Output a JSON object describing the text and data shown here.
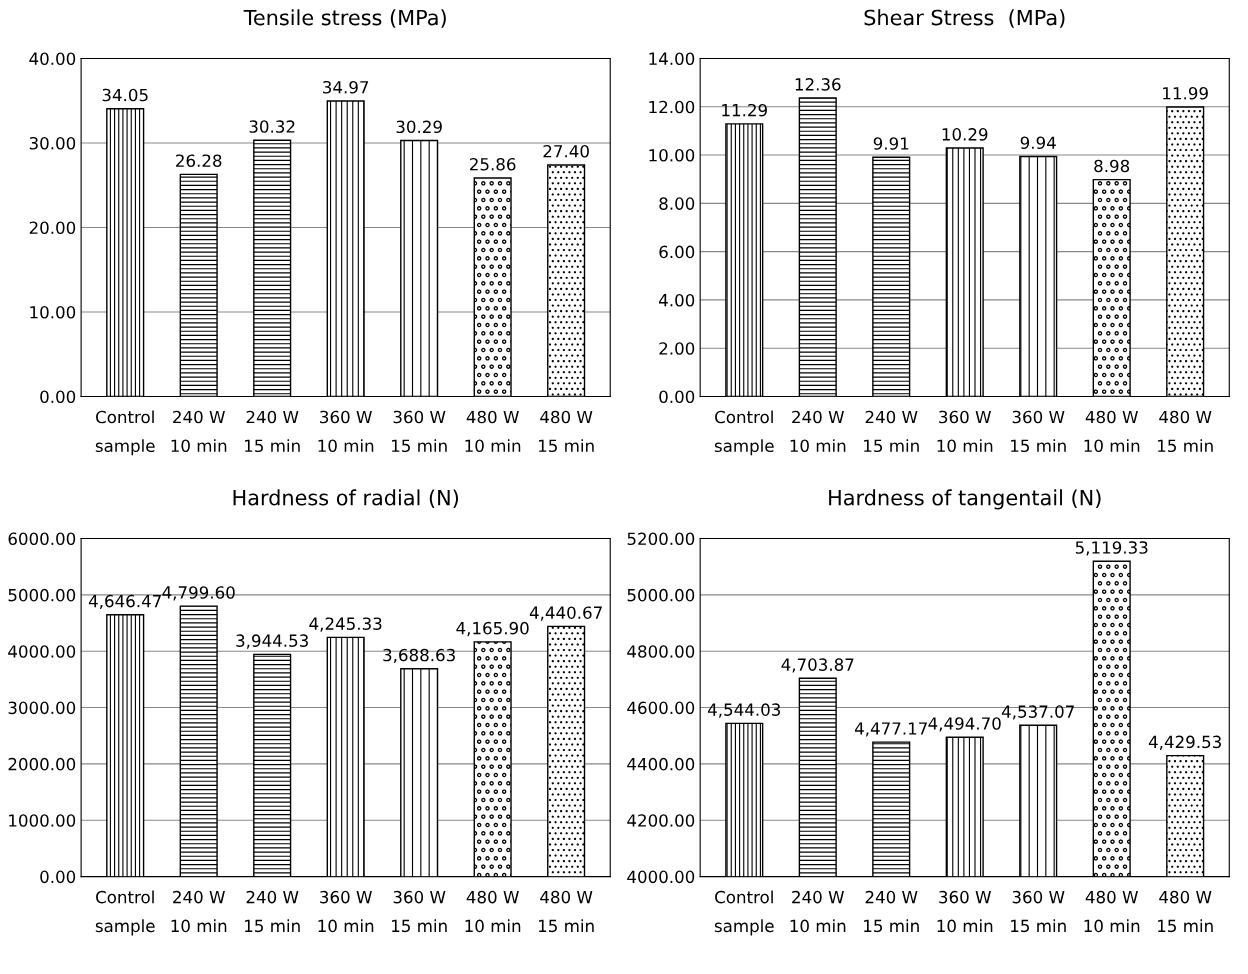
{
  "chart_data": [
    {
      "type": "bar",
      "title": "Tensile stress (MPa)",
      "categories": [
        "Control\nsample",
        "240 W\n10 min",
        "240 W\n15 min",
        "360 W\n10 min",
        "360 W\n15 min",
        "480 W\n10 min",
        "480 W\n15 min"
      ],
      "values": [
        34.05,
        26.28,
        30.32,
        34.97,
        30.29,
        25.86,
        27.4
      ],
      "value_labels": [
        "34.05",
        "26.28",
        "30.32",
        "34.97",
        "30.29",
        "25.86",
        "27.40"
      ],
      "color": "#000000",
      "ylim": [
        0,
        40
      ],
      "yticks": [
        {
          "value": 0,
          "label": "0.00"
        },
        {
          "value": 10,
          "label": "10.00"
        },
        {
          "value": 20,
          "label": "20.00"
        },
        {
          "value": 30,
          "label": "30.00"
        },
        {
          "value": 40,
          "label": "40.00"
        }
      ],
      "grid": "y",
      "legend": false
    },
    {
      "type": "bar",
      "title": "Shear Stress  (MPa)",
      "categories": [
        "Control\nsample",
        "240 W\n10 min",
        "240 W\n15 min",
        "360 W\n10 min",
        "360 W\n15 min",
        "480 W\n10 min",
        "480 W\n15 min"
      ],
      "values": [
        11.29,
        12.36,
        9.91,
        10.29,
        9.94,
        8.98,
        11.99
      ],
      "value_labels": [
        "11.29",
        "12.36",
        "9.91",
        "10.29",
        "9.94",
        "8.98",
        "11.99"
      ],
      "color": "#000000",
      "ylim": [
        0,
        14
      ],
      "yticks": [
        {
          "value": 0,
          "label": "0.00"
        },
        {
          "value": 2,
          "label": "2.00"
        },
        {
          "value": 4,
          "label": "4.00"
        },
        {
          "value": 6,
          "label": "6.00"
        },
        {
          "value": 8,
          "label": "8.00"
        },
        {
          "value": 10,
          "label": "10.00"
        },
        {
          "value": 12,
          "label": "12.00"
        },
        {
          "value": 14,
          "label": "14.00"
        }
      ],
      "grid": "y",
      "legend": false
    },
    {
      "type": "bar",
      "title": "Hardness of radial (N)",
      "categories": [
        "Control\nsample",
        "240 W\n10 min",
        "240 W\n15 min",
        "360 W\n10 min",
        "360 W\n15 min",
        "480 W\n10 min",
        "480 W\n15 min"
      ],
      "values": [
        4646.47,
        4799.6,
        3944.53,
        4245.33,
        3688.63,
        4165.9,
        4440.67
      ],
      "value_labels": [
        "4,646.47",
        "4,799.60",
        "3,944.53",
        "4,245.33",
        "3,688.63",
        "4,165.90",
        "4,440.67"
      ],
      "color": "#000000",
      "ylim": [
        0,
        6000
      ],
      "yticks": [
        {
          "value": 0,
          "label": "0.00"
        },
        {
          "value": 1000,
          "label": "1000.00"
        },
        {
          "value": 2000,
          "label": "2000.00"
        },
        {
          "value": 3000,
          "label": "3000.00"
        },
        {
          "value": 4000,
          "label": "4000.00"
        },
        {
          "value": 5000,
          "label": "5000.00"
        },
        {
          "value": 6000,
          "label": "6000.00"
        }
      ],
      "grid": "y",
      "legend": false
    },
    {
      "type": "bar",
      "title": "Hardness of tangentail (N)",
      "categories": [
        "Control\nsample",
        "240 W\n10 min",
        "240 W\n15 min",
        "360 W\n10 min",
        "360 W\n15 min",
        "480 W\n10 min",
        "480 W\n15 min"
      ],
      "values": [
        4544.03,
        4703.87,
        4477.17,
        4494.7,
        4537.07,
        5119.33,
        4429.53
      ],
      "value_labels": [
        "4,544.03",
        "4,703.87",
        "4,477.17",
        "4,494.70",
        "4,537.07",
        "5,119.33",
        "4,429.53"
      ],
      "color": "#000000",
      "ylim": [
        4000,
        5200
      ],
      "yticks": [
        {
          "value": 4000,
          "label": "4000.00"
        },
        {
          "value": 4200,
          "label": "4200.00"
        },
        {
          "value": 4400,
          "label": "4400.00"
        },
        {
          "value": 4600,
          "label": "4600.00"
        },
        {
          "value": 4800,
          "label": "4800.00"
        },
        {
          "value": 5000,
          "label": "5000.00"
        },
        {
          "value": 5200,
          "label": "5200.00"
        }
      ],
      "grid": "y",
      "legend": false
    }
  ]
}
